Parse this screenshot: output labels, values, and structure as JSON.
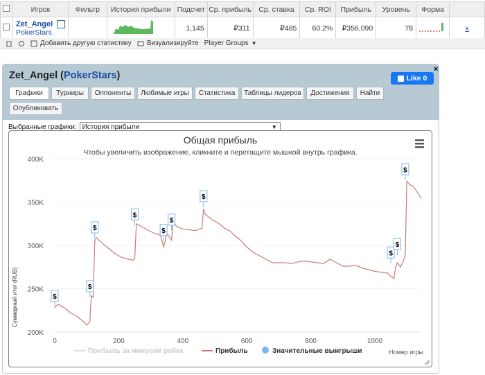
{
  "table": {
    "headers": [
      "Игрок",
      "Фильтр",
      "История прибыли",
      "Подсчет",
      "Ср. прибыль",
      "Ср. ставка",
      "Ср. ROI",
      "Прибыль",
      "Уровень",
      "Форма"
    ],
    "row": {
      "player": "Zet_Angel",
      "site": "PokerStars",
      "count": "1,145",
      "avg_profit": "₽311",
      "avg_stake": "₽485",
      "avg_roi": "60.2%",
      "profit": "₽356,090",
      "level": "78",
      "close": "x"
    }
  },
  "toolbar": {
    "add_stats": "Добавить другую статистику",
    "visualize": "Визуализируйте",
    "groups": "Player Groups"
  },
  "panel": {
    "player": "Zet_Angel",
    "site": "PokerStars",
    "like": "Like 0",
    "close": "×",
    "tabs": [
      "Графики",
      "Турниры",
      "Оппоненты",
      "Любимые игры",
      "Статистика",
      "Таблицы лидеров",
      "Достижения",
      "Найти",
      "Опубликовать"
    ],
    "select_label": "Выбранные графики:",
    "select_value": "История прибыли"
  },
  "chart_data": {
    "type": "line",
    "title": "Общая прибыль",
    "subtitle": "Чтобы увеличить изображение, кликните и перетащите мышкой внутрь графика.",
    "xlabel": "Номер игры",
    "ylabel": "Суммарный итог (RUB)",
    "xlim": [
      0,
      1145
    ],
    "ylim": [
      200000,
      400000
    ],
    "xticks": [
      0,
      200,
      400,
      600,
      800,
      1000
    ],
    "yticks": [
      200000,
      250000,
      300000,
      350000,
      400000
    ],
    "ytick_labels": [
      "200K",
      "250K",
      "300K",
      "350K",
      "400K"
    ],
    "legend": [
      "Прибыль за минусом рейка",
      "Прибыль",
      "Значительные выигрыши"
    ],
    "series_color": "#c97a7a",
    "x": [
      0,
      10,
      30,
      50,
      70,
      90,
      100,
      110,
      112,
      115,
      120,
      125,
      130,
      150,
      170,
      190,
      210,
      230,
      245,
      250,
      255,
      270,
      290,
      310,
      330,
      340,
      345,
      350,
      365,
      370,
      380,
      400,
      420,
      440,
      460,
      465,
      470,
      490,
      510,
      530,
      550,
      560,
      580,
      600,
      620,
      640,
      660,
      680,
      700,
      720,
      740,
      760,
      780,
      800,
      820,
      840,
      860,
      880,
      900,
      920,
      940,
      960,
      980,
      1000,
      1020,
      1040,
      1050,
      1060,
      1065,
      1070,
      1080,
      1090,
      1095,
      1100,
      1110,
      1120,
      1130,
      1140,
      1145
    ],
    "y": [
      228000,
      232000,
      228000,
      222000,
      218000,
      212000,
      208000,
      212000,
      230000,
      242000,
      240000,
      305000,
      309000,
      302000,
      296000,
      290000,
      286000,
      284000,
      283000,
      285000,
      325000,
      322000,
      318000,
      314000,
      312000,
      298000,
      305000,
      314000,
      306000,
      329000,
      322000,
      319000,
      318000,
      317000,
      320000,
      342000,
      336000,
      330000,
      326000,
      320000,
      316000,
      312000,
      306000,
      298000,
      292000,
      288000,
      284000,
      280000,
      280000,
      280000,
      279000,
      281000,
      282000,
      281000,
      280000,
      279000,
      284000,
      280000,
      276000,
      276000,
      277000,
      274000,
      272000,
      270000,
      269000,
      268000,
      264000,
      262000,
      275000,
      280000,
      275000,
      283000,
      288000,
      374000,
      370000,
      368000,
      363000,
      357000,
      354000
    ],
    "markers": [
      [
        0,
        229000
      ],
      [
        110,
        240000
      ],
      [
        125,
        308000
      ],
      [
        250,
        323000
      ],
      [
        340,
        305000
      ],
      [
        365,
        317000
      ],
      [
        465,
        344000
      ],
      [
        1050,
        279000
      ],
      [
        1070,
        289000
      ],
      [
        1095,
        375000
      ]
    ]
  }
}
